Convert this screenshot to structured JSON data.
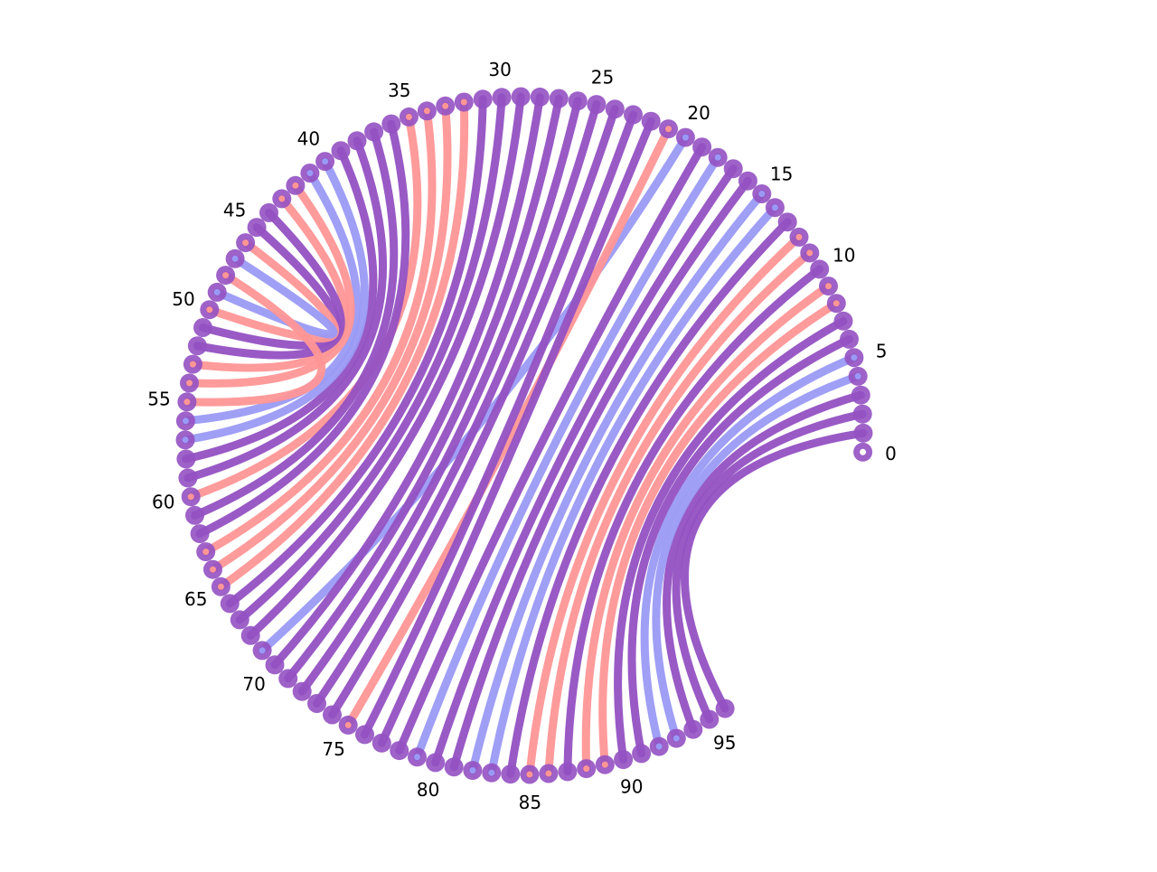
{
  "diagram": {
    "type": "arc-circle",
    "node_count": 97,
    "node_labels": [
      "0",
      "5",
      "10",
      "15",
      "20",
      "25",
      "30",
      "35",
      "40",
      "45",
      "50",
      "55",
      "60",
      "65",
      "70",
      "75",
      "80",
      "85",
      "90",
      "95"
    ],
    "colors": {
      "purple": "#9351c2",
      "red": "#ff9696",
      "blue": "#9a9af5",
      "node_ring": "#9351c2",
      "node_center": "#ffffff"
    },
    "edges": [
      {
        "from": 1,
        "to": 96,
        "color": "purple"
      },
      {
        "from": 2,
        "to": 95,
        "color": "purple"
      },
      {
        "from": 3,
        "to": 94,
        "color": "purple"
      },
      {
        "from": 4,
        "to": 93,
        "color": "blue"
      },
      {
        "from": 5,
        "to": 92,
        "color": "blue"
      },
      {
        "from": 6,
        "to": 91,
        "color": "purple"
      },
      {
        "from": 7,
        "to": 90,
        "color": "purple"
      },
      {
        "from": 8,
        "to": 89,
        "color": "red"
      },
      {
        "from": 9,
        "to": 88,
        "color": "red"
      },
      {
        "from": 10,
        "to": 87,
        "color": "purple"
      },
      {
        "from": 11,
        "to": 86,
        "color": "red"
      },
      {
        "from": 12,
        "to": 85,
        "color": "red"
      },
      {
        "from": 13,
        "to": 84,
        "color": "purple"
      },
      {
        "from": 14,
        "to": 83,
        "color": "blue"
      },
      {
        "from": 15,
        "to": 82,
        "color": "blue"
      },
      {
        "from": 16,
        "to": 81,
        "color": "purple"
      },
      {
        "from": 17,
        "to": 80,
        "color": "purple"
      },
      {
        "from": 18,
        "to": 79,
        "color": "blue"
      },
      {
        "from": 19,
        "to": 78,
        "color": "purple"
      },
      {
        "from": 20,
        "to": 69,
        "color": "blue"
      },
      {
        "from": 21,
        "to": 75,
        "color": "red"
      },
      {
        "from": 22,
        "to": 77,
        "color": "purple"
      },
      {
        "from": 23,
        "to": 76,
        "color": "purple"
      },
      {
        "from": 24,
        "to": 74,
        "color": "purple"
      },
      {
        "from": 25,
        "to": 73,
        "color": "purple"
      },
      {
        "from": 26,
        "to": 72,
        "color": "purple"
      },
      {
        "from": 27,
        "to": 71,
        "color": "purple"
      },
      {
        "from": 28,
        "to": 70,
        "color": "purple"
      },
      {
        "from": 29,
        "to": 68,
        "color": "purple"
      },
      {
        "from": 30,
        "to": 67,
        "color": "purple"
      },
      {
        "from": 31,
        "to": 66,
        "color": "purple"
      },
      {
        "from": 32,
        "to": 65,
        "color": "red"
      },
      {
        "from": 33,
        "to": 64,
        "color": "red"
      },
      {
        "from": 34,
        "to": 63,
        "color": "red"
      },
      {
        "from": 35,
        "to": 60,
        "color": "red"
      },
      {
        "from": 36,
        "to": 62,
        "color": "purple"
      },
      {
        "from": 37,
        "to": 61,
        "color": "purple"
      },
      {
        "from": 38,
        "to": 59,
        "color": "purple"
      },
      {
        "from": 39,
        "to": 58,
        "color": "purple"
      },
      {
        "from": 40,
        "to": 57,
        "color": "blue"
      },
      {
        "from": 41,
        "to": 56,
        "color": "blue"
      },
      {
        "from": 42,
        "to": 54,
        "color": "red"
      },
      {
        "from": 43,
        "to": 53,
        "color": "red"
      },
      {
        "from": 44,
        "to": 52,
        "color": "purple"
      },
      {
        "from": 45,
        "to": 51,
        "color": "purple"
      },
      {
        "from": 46,
        "to": 50,
        "color": "red"
      },
      {
        "from": 47,
        "to": 49,
        "color": "blue"
      },
      {
        "from": 48,
        "to": 55,
        "color": "red"
      }
    ]
  }
}
